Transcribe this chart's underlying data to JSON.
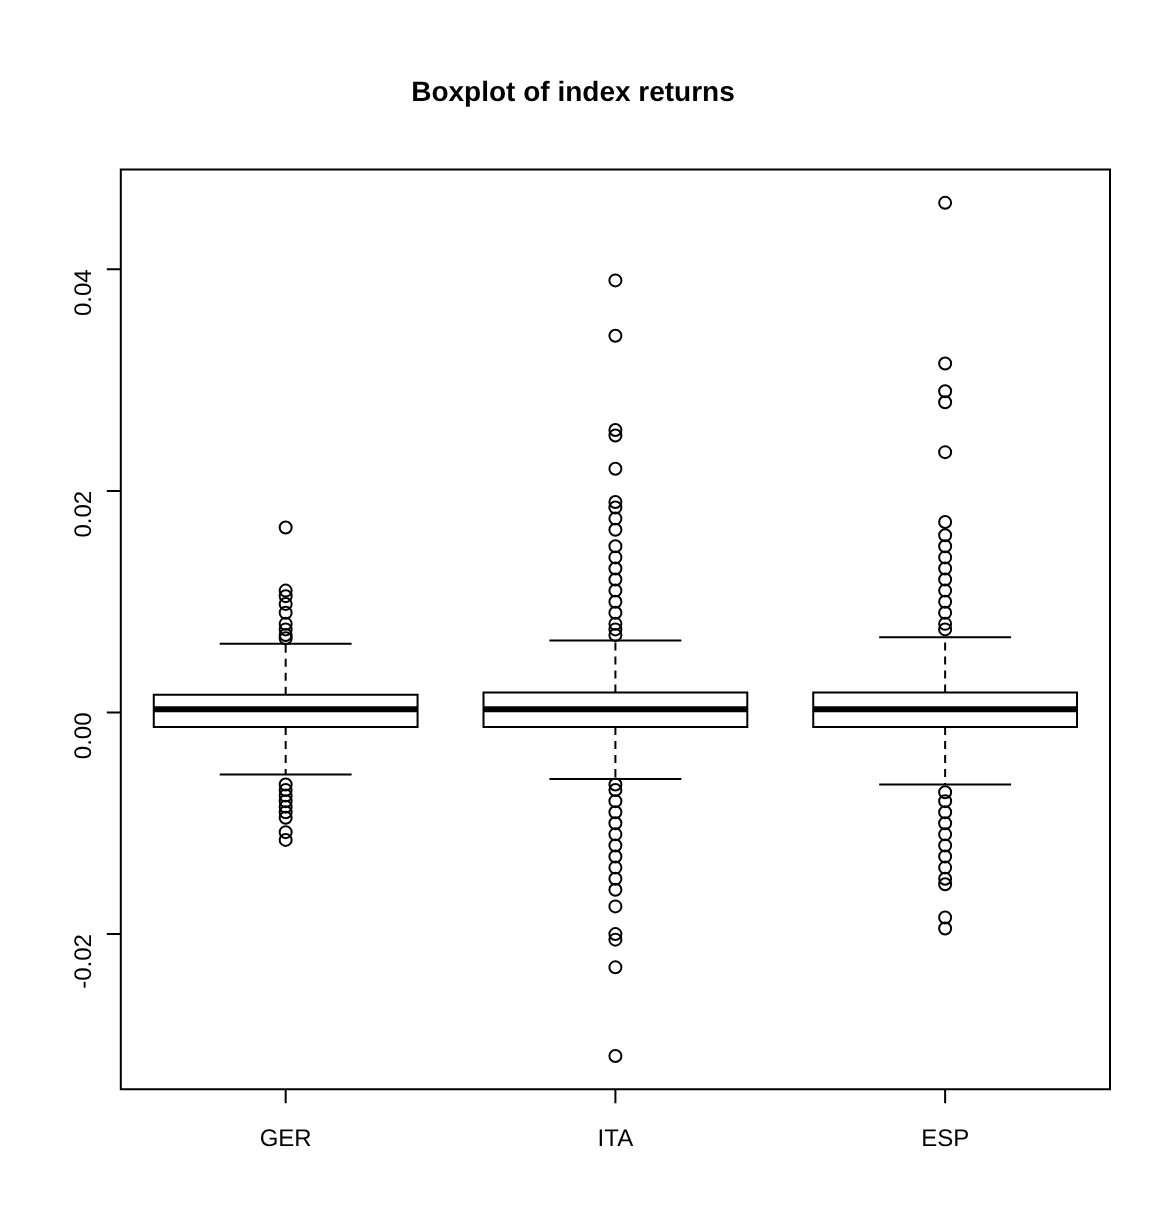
{
  "chart_data": {
    "type": "box",
    "title": "Boxplot of index returns",
    "categories": [
      "GER",
      "ITA",
      "ESP"
    ],
    "ylim": [
      -0.034,
      0.049
    ],
    "yticks": [
      {
        "value": -0.02,
        "label": "-0.02"
      },
      {
        "value": 0,
        "label": "0.00"
      },
      {
        "value": 0.02,
        "label": "0.02"
      },
      {
        "value": 0.04,
        "label": "0.04"
      }
    ],
    "grid": false,
    "legend": false,
    "marker": "circle",
    "boxes": [
      {
        "low": -0.0056,
        "q1": -0.0013,
        "median": 0.0003,
        "q3": 0.0016,
        "high": 0.0062,
        "outliers": [
          0.0167,
          0.011,
          0.0105,
          0.0098,
          0.009,
          0.008,
          0.0075,
          0.007,
          0.0067,
          -0.0065,
          -0.007,
          -0.0075,
          -0.008,
          -0.0085,
          -0.009,
          -0.0095,
          -0.0108,
          -0.0115
        ]
      },
      {
        "low": -0.006,
        "q1": -0.0013,
        "median": 0.0003,
        "q3": 0.0018,
        "high": 0.0065,
        "outliers": [
          0.039,
          0.034,
          0.0255,
          0.025,
          0.022,
          0.019,
          0.0185,
          0.0175,
          0.0165,
          0.015,
          0.014,
          0.013,
          0.012,
          0.011,
          0.01,
          0.009,
          0.008,
          0.0075,
          0.007,
          -0.031,
          -0.023,
          -0.0205,
          -0.02,
          -0.0175,
          -0.016,
          -0.015,
          -0.014,
          -0.013,
          -0.012,
          -0.011,
          -0.01,
          -0.009,
          -0.008,
          -0.007,
          -0.0065
        ]
      },
      {
        "low": -0.0065,
        "q1": -0.0013,
        "median": 0.0003,
        "q3": 0.0018,
        "high": 0.0068,
        "outliers": [
          0.046,
          0.0315,
          0.029,
          0.028,
          0.0235,
          0.0172,
          0.016,
          0.015,
          0.014,
          0.013,
          0.012,
          0.011,
          0.01,
          0.009,
          0.008,
          0.0075,
          -0.0195,
          -0.0185,
          -0.0155,
          -0.015,
          -0.014,
          -0.013,
          -0.012,
          -0.011,
          -0.01,
          -0.009,
          -0.008,
          -0.0072
        ]
      }
    ]
  }
}
